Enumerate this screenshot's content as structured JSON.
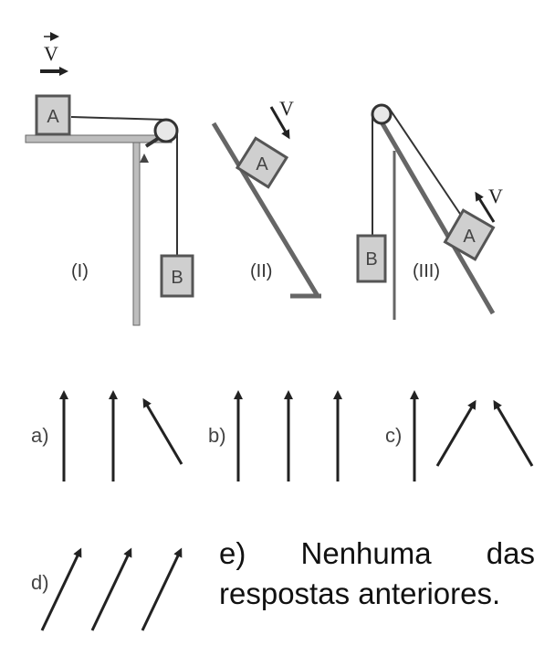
{
  "figure": {
    "velocity_label": "V",
    "block_a_label": "A",
    "block_b_label": "B",
    "case_labels": [
      "(I)",
      "(II)",
      "(III)"
    ]
  },
  "options": {
    "a": "a)",
    "b": "b)",
    "c": "c)",
    "d": "d)",
    "e": "e) Nenhuma das respostas anteriores."
  },
  "colors": {
    "stroke": "#222222",
    "block_fill": "#cfcfcf",
    "block_stroke": "#555555"
  }
}
